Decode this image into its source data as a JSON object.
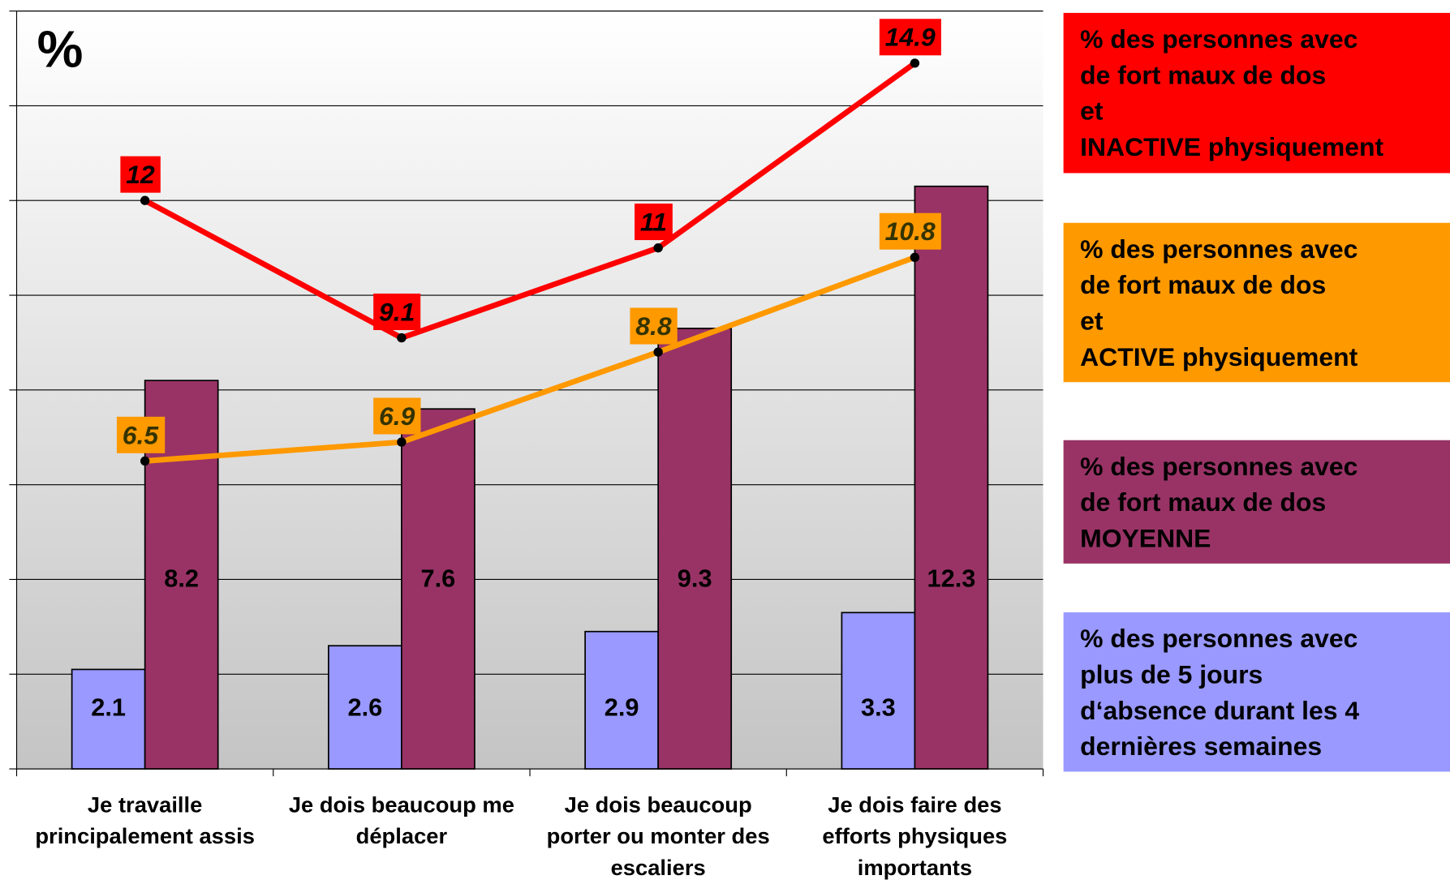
{
  "chart_data": {
    "type": "bar",
    "ylabel": "%",
    "categories": [
      "Je travaille\nprincipalement assis",
      "Je dois beaucoup me\ndéplacer",
      "Je dois beaucoup\nporter ou monter des\nescaliers",
      "Je dois faire des\nefforts physiques\nimportants"
    ],
    "series": [
      {
        "name": "% des personnes avec\nde fort maux de dos\net\nINACTIVE physiquement",
        "type": "line",
        "color": "#ff0000",
        "label_color": "#000000",
        "values": [
          12,
          9.1,
          11,
          14.9
        ]
      },
      {
        "name": "% des personnes avec\nde fort maux de dos\net\nACTIVE physiquement",
        "type": "line",
        "color": "#ff9900",
        "label_color": "#333300",
        "values": [
          6.5,
          6.9,
          8.8,
          10.8
        ]
      },
      {
        "name": "% des personnes avec\nde fort maux de dos\nMOYENNE",
        "type": "bar",
        "color": "#993366",
        "values": [
          8.2,
          7.6,
          9.3,
          12.3
        ]
      },
      {
        "name": "% des personnes avec\nplus de 5 jours\nd‘absence durant les 4\ndernières semaines",
        "type": "bar",
        "color": "#9999ff",
        "values": [
          2.1,
          2.6,
          2.9,
          3.3
        ]
      }
    ],
    "ylim": [
      0,
      16
    ],
    "yticks": [
      0,
      2,
      4,
      6,
      8,
      10,
      12,
      14,
      16
    ],
    "grid": true,
    "legend": "right"
  }
}
